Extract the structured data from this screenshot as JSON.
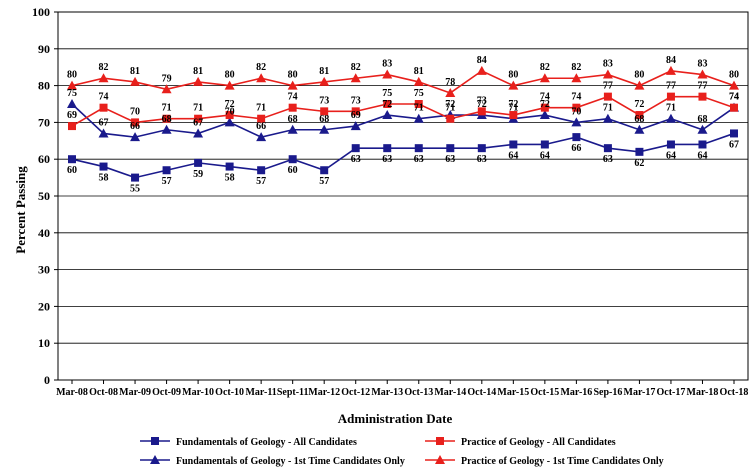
{
  "chart_data": {
    "type": "line",
    "xlabel": "Administration Date",
    "ylabel": "Percent Passing",
    "ylim": [
      0,
      100
    ],
    "yticks": [
      0,
      10,
      20,
      30,
      40,
      50,
      60,
      70,
      80,
      90,
      100
    ],
    "grid": true,
    "legend_position": "bottom",
    "categories": [
      "Mar-08",
      "Oct-08",
      "Mar-09",
      "Oct-09",
      "Mar-10",
      "Oct-10",
      "Mar-11",
      "Sept-11",
      "Mar-12",
      "Oct-12",
      "Mar-13",
      "Oct-13",
      "Mar-14",
      "Oct-14",
      "Mar-15",
      "Oct-15",
      "Mar-16",
      "Sep-16",
      "Mar-17",
      "Oct-17",
      "Mar-18",
      "Oct-18"
    ],
    "series": [
      {
        "name": "Fundamentals of Geology - All Candidates",
        "color": "#1a1a8c",
        "marker": "square",
        "values": [
          60,
          58,
          55,
          57,
          59,
          58,
          57,
          60,
          57,
          63,
          63,
          63,
          63,
          63,
          64,
          64,
          66,
          63,
          62,
          64,
          64,
          67
        ]
      },
      {
        "name": "Fundamentals of Geology - 1st Time Candidates Only",
        "color": "#1a1a8c",
        "marker": "triangle",
        "values": [
          75,
          67,
          66,
          68,
          67,
          70,
          66,
          68,
          68,
          69,
          72,
          71,
          72,
          72,
          71,
          72,
          70,
          71,
          68,
          71,
          68,
          74
        ]
      },
      {
        "name": "Practice of Geology - All Candidates",
        "color": "#e8201c",
        "marker": "square",
        "values": [
          69,
          74,
          70,
          71,
          71,
          72,
          71,
          74,
          73,
          73,
          75,
          75,
          71,
          73,
          72,
          74,
          74,
          77,
          72,
          77,
          77,
          74
        ]
      },
      {
        "name": "Practice of Geology - 1st Time Candidates Only",
        "color": "#e8201c",
        "marker": "triangle",
        "values": [
          80,
          82,
          81,
          79,
          81,
          80,
          82,
          80,
          81,
          82,
          83,
          81,
          78,
          84,
          80,
          82,
          82,
          83,
          80,
          84,
          83,
          80
        ]
      }
    ]
  }
}
